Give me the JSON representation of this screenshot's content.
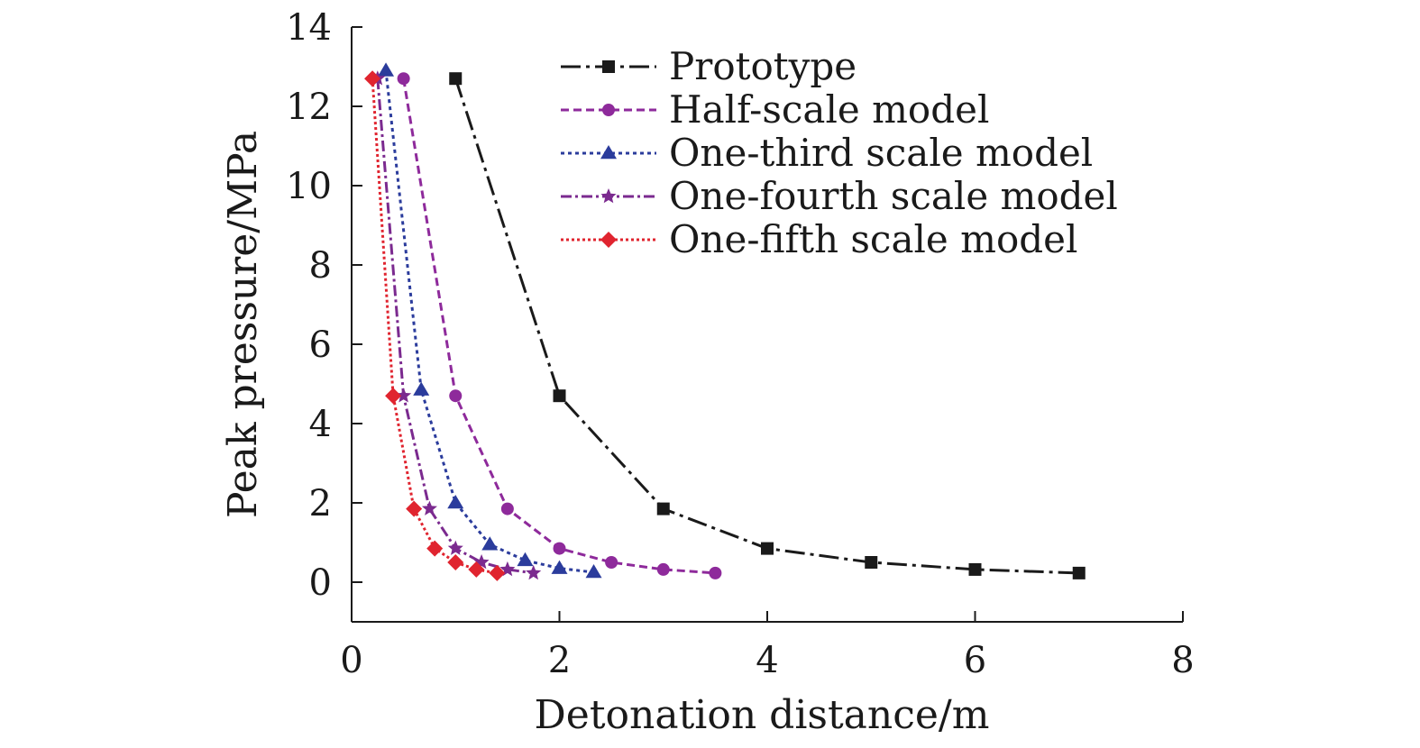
{
  "chart_data": {
    "type": "line",
    "title": "",
    "xlabel": "Detonation distance/m",
    "ylabel": "Peak pressure/MPa",
    "xlim": [
      0,
      8
    ],
    "ylim": [
      -1,
      14
    ],
    "xticks": [
      0,
      2,
      4,
      6,
      8
    ],
    "yticks": [
      0,
      2,
      4,
      6,
      8,
      10,
      12,
      14
    ],
    "grid": false,
    "legend_position": "top-right",
    "series": [
      {
        "name": "Prototype",
        "color": "#1a1a1a",
        "marker": "square",
        "dash": "22 6 4 6",
        "x": [
          1,
          2,
          3,
          4,
          5,
          6,
          7
        ],
        "y": [
          12.7,
          4.7,
          1.85,
          0.85,
          0.5,
          0.32,
          0.23
        ]
      },
      {
        "name": "Half-scale model",
        "color": "#8e2a9b",
        "marker": "circle",
        "dash": "9 5",
        "x": [
          0.5,
          1.0,
          1.5,
          2.0,
          2.5,
          3.0,
          3.5
        ],
        "y": [
          12.7,
          4.7,
          1.85,
          0.85,
          0.5,
          0.32,
          0.23
        ]
      },
      {
        "name": "One-third scale model",
        "color": "#2b3c9c",
        "marker": "triangle",
        "dash": "4 4",
        "x": [
          0.33,
          0.67,
          1.0,
          1.33,
          1.67,
          2.0,
          2.33
        ],
        "y": [
          12.9,
          4.85,
          2.0,
          0.95,
          0.55,
          0.35,
          0.25
        ]
      },
      {
        "name": "One-fourth scale model",
        "color": "#7b2a8f",
        "marker": "star",
        "dash": "12 4 3 4",
        "x": [
          0.25,
          0.5,
          0.75,
          1.0,
          1.25,
          1.5,
          1.75
        ],
        "y": [
          12.7,
          4.7,
          1.85,
          0.85,
          0.5,
          0.32,
          0.23
        ]
      },
      {
        "name": "One-fifth scale model",
        "color": "#e0242f",
        "marker": "diamond",
        "dash": "3 3",
        "x": [
          0.2,
          0.4,
          0.6,
          0.8,
          1.0,
          1.2,
          1.4
        ],
        "y": [
          12.7,
          4.7,
          1.85,
          0.85,
          0.5,
          0.32,
          0.23
        ]
      }
    ]
  }
}
